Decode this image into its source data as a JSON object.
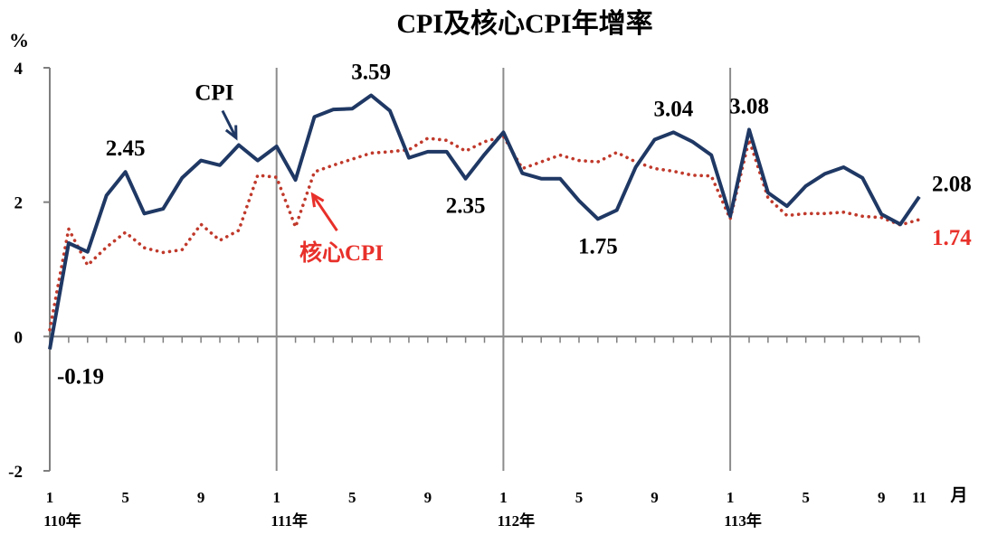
{
  "chart_data": {
    "type": "line",
    "title": "CPI及核心CPI年增率",
    "ylabel": "%",
    "xlabel": "月",
    "ylim": [
      -2,
      4
    ],
    "yticks": [
      -2,
      0,
      2,
      4
    ],
    "x": [
      "110-1",
      "110-2",
      "110-3",
      "110-4",
      "110-5",
      "110-6",
      "110-7",
      "110-8",
      "110-9",
      "110-10",
      "110-11",
      "110-12",
      "111-1",
      "111-2",
      "111-3",
      "111-4",
      "111-5",
      "111-6",
      "111-7",
      "111-8",
      "111-9",
      "111-10",
      "111-11",
      "111-12",
      "112-1",
      "112-2",
      "112-3",
      "112-4",
      "112-5",
      "112-6",
      "112-7",
      "112-8",
      "112-9",
      "112-10",
      "112-11",
      "112-12",
      "113-1",
      "113-2",
      "113-3",
      "113-4",
      "113-5",
      "113-6",
      "113-7",
      "113-8",
      "113-9",
      "113-10",
      "113-11"
    ],
    "x_tick_labels": [
      {
        "index": 0,
        "label": "1"
      },
      {
        "index": 4,
        "label": "5"
      },
      {
        "index": 8,
        "label": "9"
      },
      {
        "index": 12,
        "label": "1"
      },
      {
        "index": 16,
        "label": "5"
      },
      {
        "index": 20,
        "label": "9"
      },
      {
        "index": 24,
        "label": "1"
      },
      {
        "index": 28,
        "label": "5"
      },
      {
        "index": 32,
        "label": "9"
      },
      {
        "index": 36,
        "label": "1"
      },
      {
        "index": 40,
        "label": "5"
      },
      {
        "index": 44,
        "label": "9"
      },
      {
        "index": 46,
        "label": "11"
      }
    ],
    "year_labels": [
      {
        "index": 0,
        "label": "110年"
      },
      {
        "index": 12,
        "label": "111年"
      },
      {
        "index": 24,
        "label": "112年"
      },
      {
        "index": 36,
        "label": "113年"
      }
    ],
    "year_dividers": [
      12,
      24,
      36
    ],
    "series": [
      {
        "name": "CPI",
        "color": "#1f3864",
        "style": "solid",
        "values": [
          -0.19,
          1.39,
          1.26,
          2.1,
          2.45,
          1.83,
          1.9,
          2.36,
          2.62,
          2.55,
          2.85,
          2.62,
          2.83,
          2.33,
          3.27,
          3.38,
          3.39,
          3.59,
          3.36,
          2.66,
          2.75,
          2.75,
          2.35,
          2.71,
          3.04,
          2.43,
          2.35,
          2.35,
          2.02,
          1.75,
          1.88,
          2.52,
          2.93,
          3.04,
          2.9,
          2.7,
          1.79,
          3.08,
          2.14,
          1.94,
          2.24,
          2.42,
          2.52,
          2.36,
          1.82,
          1.67,
          2.08
        ]
      },
      {
        "name": "核心CPI",
        "color": "#c0392b",
        "style": "dotted",
        "values": [
          0.1,
          1.6,
          1.06,
          1.33,
          1.55,
          1.32,
          1.25,
          1.29,
          1.67,
          1.43,
          1.58,
          2.4,
          2.37,
          1.63,
          2.45,
          2.55,
          2.64,
          2.73,
          2.75,
          2.78,
          2.95,
          2.92,
          2.76,
          2.9,
          2.98,
          2.5,
          2.6,
          2.7,
          2.62,
          2.6,
          2.74,
          2.6,
          2.5,
          2.46,
          2.4,
          2.39,
          1.75,
          2.93,
          2.06,
          1.8,
          1.83,
          1.83,
          1.85,
          1.79,
          1.77,
          1.66,
          1.74
        ]
      }
    ],
    "data_labels": [
      {
        "series": 0,
        "index": 0,
        "text": "-0.19",
        "pos": "below"
      },
      {
        "series": 0,
        "index": 4,
        "text": "2.45",
        "pos": "above"
      },
      {
        "series": 0,
        "index": 17,
        "text": "3.59",
        "pos": "above"
      },
      {
        "series": 0,
        "index": 22,
        "text": "2.35",
        "pos": "below"
      },
      {
        "series": 0,
        "index": 29,
        "text": "1.75",
        "pos": "below"
      },
      {
        "series": 0,
        "index": 33,
        "text": "3.04",
        "pos": "above"
      },
      {
        "series": 0,
        "index": 37,
        "text": "3.08",
        "pos": "above"
      },
      {
        "series": 0,
        "index": 46,
        "text": "2.08",
        "pos": "right-above"
      },
      {
        "series": 1,
        "index": 46,
        "text": "1.74",
        "pos": "right-below"
      }
    ],
    "annotations": [
      {
        "series": 0,
        "text": "CPI",
        "target_index": 10,
        "pos": "upper-left"
      },
      {
        "series": 1,
        "text": "核心CPI",
        "target_index": 14,
        "pos": "lower-right"
      }
    ],
    "grid": false,
    "legend": "none"
  }
}
